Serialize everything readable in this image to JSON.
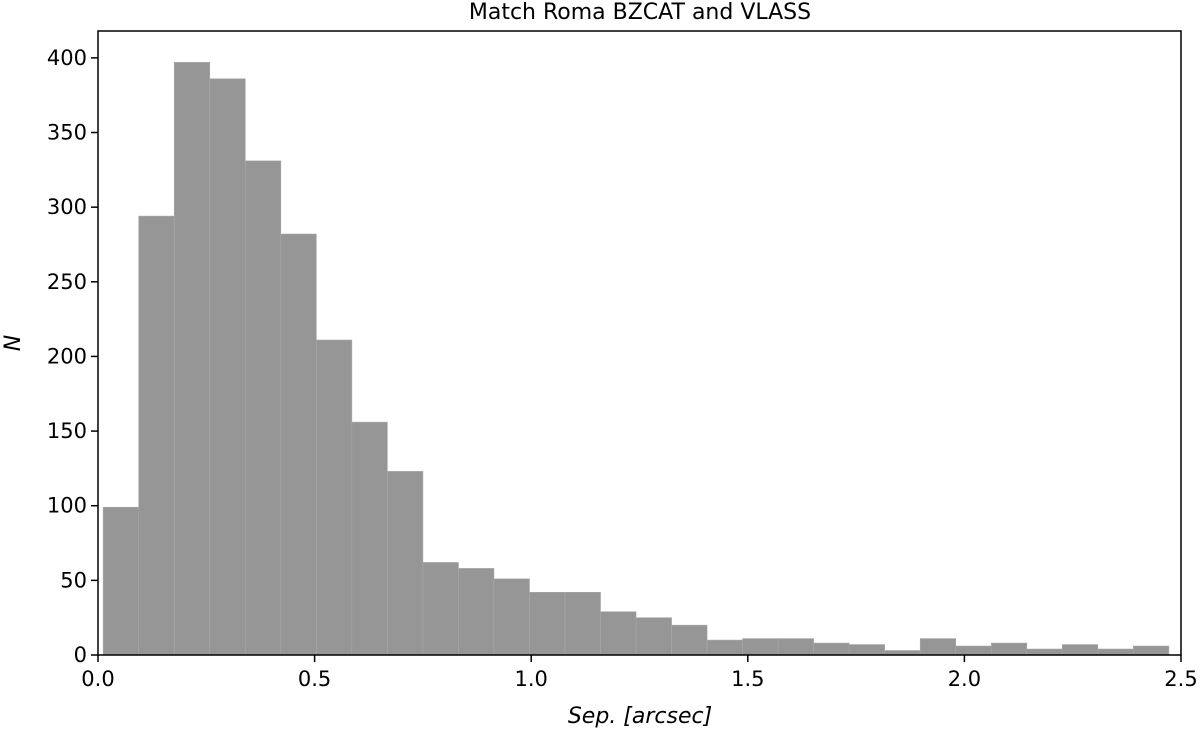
{
  "chart_data": {
    "type": "bar",
    "title": "Match Roma BZCAT and VLASS",
    "xlabel": "Sep. [arcsec]",
    "ylabel": "N",
    "xlim": [
      0.0,
      2.5
    ],
    "ylim": [
      0,
      418
    ],
    "grid": false,
    "bar_color": "#969696",
    "bin_edges": [
      0.012,
      0.094,
      0.176,
      0.258,
      0.34,
      0.422,
      0.504,
      0.586,
      0.668,
      0.75,
      0.832,
      0.914,
      0.996,
      1.078,
      1.16,
      1.242,
      1.324,
      1.406,
      1.488,
      1.57,
      1.652,
      1.734,
      1.816,
      1.898,
      1.98,
      2.062,
      2.144,
      2.226,
      2.308,
      2.39,
      2.472
    ],
    "values": [
      99,
      294,
      397,
      386,
      331,
      282,
      211,
      156,
      123,
      62,
      58,
      51,
      42,
      42,
      29,
      25,
      20,
      10,
      11,
      11,
      8,
      7,
      3,
      11,
      6,
      8,
      4,
      7,
      4,
      6
    ],
    "x_ticks": [
      "0.0",
      "0.5",
      "1.0",
      "1.5",
      "2.0",
      "2.5"
    ],
    "x_tick_values": [
      0.0,
      0.5,
      1.0,
      1.5,
      2.0,
      2.5
    ],
    "y_ticks": [
      "0",
      "50",
      "100",
      "150",
      "200",
      "250",
      "300",
      "350",
      "400"
    ],
    "y_tick_values": [
      0,
      50,
      100,
      150,
      200,
      250,
      300,
      350,
      400
    ]
  }
}
